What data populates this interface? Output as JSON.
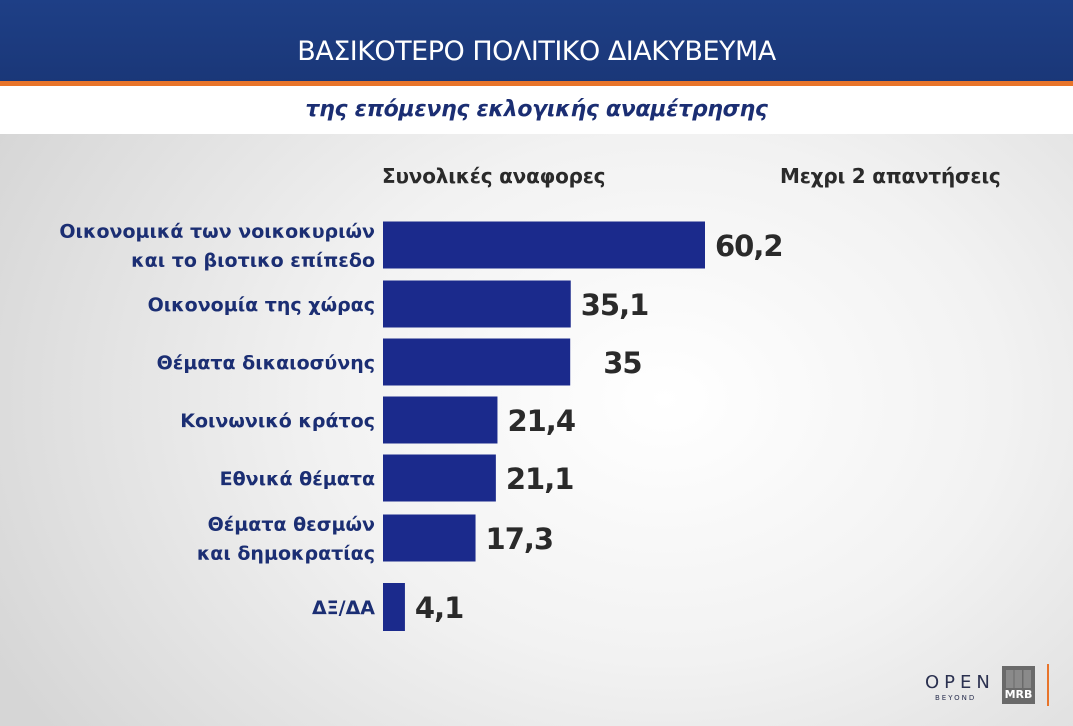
{
  "header": {
    "title": "ΒΑΣΙΚΟΤΕΡΟ ΠΟΛΙΤΙΚΟ ΔΙΑΚΥΒΕΥΜΑ",
    "subtitle": "της επόμενης εκλογικής αναμέτρησης"
  },
  "columns": {
    "left": "Συνολικές αναφορες",
    "right": "Μεχρι 2 απαντήσεις"
  },
  "chart_data": {
    "type": "bar",
    "orientation": "horizontal",
    "categories": [
      [
        "Οικονομικά των νοικοκυριών",
        "και το βιοτικο επίπεδο"
      ],
      [
        "Οικονομία της χώρας"
      ],
      [
        "Θέματα δικαιοσύνης"
      ],
      [
        "Κοινωνικό κράτος"
      ],
      [
        "Εθνικά θέματα"
      ],
      [
        "Θέματα θεσμών",
        "και δημοκρατίας"
      ],
      [
        "ΔΞ/ΔΑ"
      ]
    ],
    "values": [
      60.2,
      35.1,
      35,
      21.4,
      21.1,
      17.3,
      4.1
    ],
    "value_labels": [
      "60,2",
      "35,1",
      "35",
      "21,4",
      "21,1",
      "17,3",
      "4,1"
    ],
    "bar_color": "#1b2a8c",
    "xlim": [
      0,
      60.2
    ],
    "grid": false
  },
  "branding": {
    "open_logo": "OPEN",
    "open_tagline": "BEYOND",
    "mrb_logo": "MRB"
  },
  "colors": {
    "header_blue": "#1e3f86",
    "accent_orange": "#e8742a",
    "subtitle_blue": "#1b2e73"
  }
}
